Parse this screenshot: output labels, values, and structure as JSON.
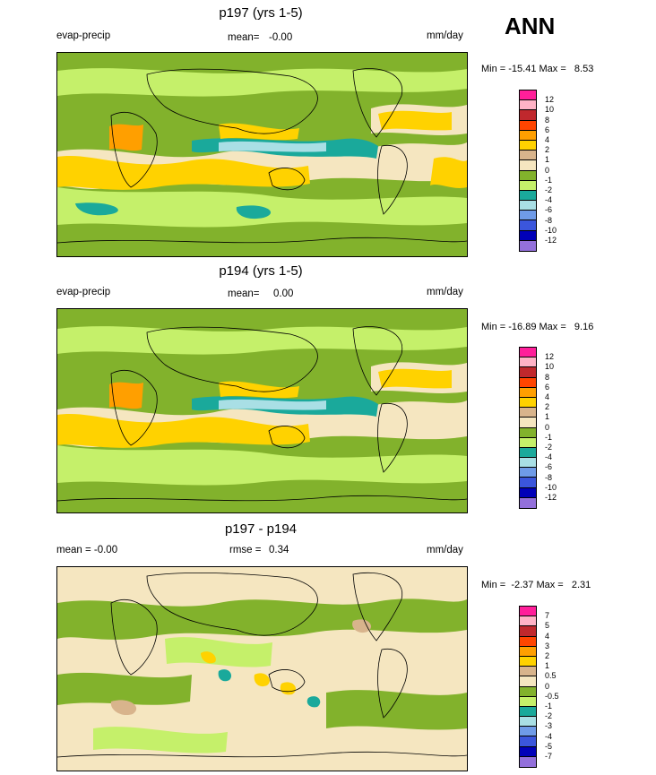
{
  "season": "ANN",
  "panels": [
    {
      "title": "p197 (yrs 1-5)",
      "left_label": "evap-precip",
      "mean_label": "mean=",
      "mean_value": "-0.00",
      "units": "mm/day",
      "minmax": "Min = -15.41 Max =   8.53",
      "levels": [
        "12",
        "10",
        "8",
        "6",
        "4",
        "2",
        "1",
        "0",
        "-1",
        "-2",
        "-4",
        "-6",
        "-8",
        "-10",
        "-12"
      ],
      "colors": [
        "#ff1f9a",
        "#ffb3c6",
        "#c0282d",
        "#ff4500",
        "#ff9f00",
        "#ffd200",
        "#d8b48c",
        "#f5e6c0",
        "#82b22c",
        "#c5f06a",
        "#1aa99b",
        "#a9dfe5",
        "#6f9be8",
        "#3b56dc",
        "#0000b8",
        "#9370db"
      ]
    },
    {
      "title": "p194 (yrs 1-5)",
      "left_label": "evap-precip",
      "mean_label": "mean=",
      "mean_value": "0.00",
      "units": "mm/day",
      "minmax": "Min = -16.89 Max =   9.16",
      "levels": [
        "12",
        "10",
        "8",
        "6",
        "4",
        "2",
        "1",
        "0",
        "-1",
        "-2",
        "-4",
        "-6",
        "-8",
        "-10",
        "-12"
      ],
      "colors": [
        "#ff1f9a",
        "#ffb3c6",
        "#c0282d",
        "#ff4500",
        "#ff9f00",
        "#ffd200",
        "#d8b48c",
        "#f5e6c0",
        "#82b22c",
        "#c5f06a",
        "#1aa99b",
        "#a9dfe5",
        "#6f9be8",
        "#3b56dc",
        "#0000b8",
        "#9370db"
      ]
    },
    {
      "title": "p197 - p194",
      "left_label": "mean =  -0.00",
      "mean_label": "rmse =",
      "mean_value": "0.34",
      "units": "mm/day",
      "minmax": "Min =  -2.37 Max =   2.31",
      "levels": [
        "7",
        "5",
        "4",
        "3",
        "2",
        "1",
        "0.5",
        "0",
        "-0.5",
        "-1",
        "-2",
        "-3",
        "-4",
        "-5",
        "-7"
      ],
      "colors": [
        "#ff1f9a",
        "#ffb3c6",
        "#c0282d",
        "#ff4500",
        "#ff9f00",
        "#ffd200",
        "#d8b48c",
        "#f5e6c0",
        "#82b22c",
        "#c5f06a",
        "#1aa99b",
        "#a9dfe5",
        "#6f9be8",
        "#3b56dc",
        "#0000b8",
        "#9370db"
      ]
    }
  ]
}
